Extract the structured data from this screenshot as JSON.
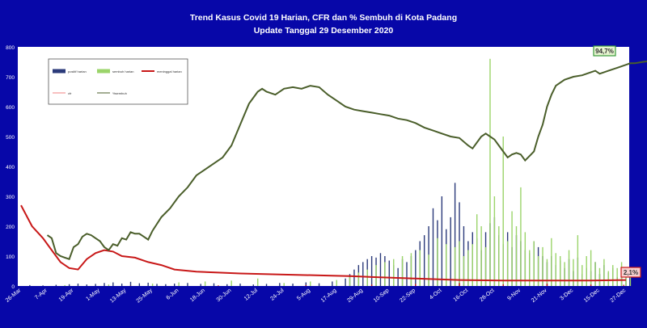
{
  "title": "Trend Kasus Covid 19 Harian, CFR dan % Sembuh di Kota Padang",
  "subtitle": "Update Tanggal 29 Desember  2020",
  "colors": {
    "background": "#0707a8",
    "plot_area": "#ffffff",
    "positif": "#2b3a7a",
    "sembuh": "#9bd46a",
    "meninggal": "#c81818",
    "cfr": "#f08080",
    "sembuh_pct": "#4a5e2a"
  },
  "chart_data": {
    "type": "bar",
    "title": "Trend Kasus Covid 19 Harian, CFR dan % Sembuh di Kota Padang",
    "subtitle": "Update Tanggal 29 Desember  2020",
    "xlabel": "",
    "ylabel": "",
    "ylim": [
      0,
      800
    ],
    "yticks": [
      0,
      100,
      200,
      300,
      400,
      500,
      600,
      700,
      800
    ],
    "grid": false,
    "legend_position": "top-left",
    "x_tick_labels": [
      "26-Mar",
      "7-Apr",
      "19-Apr",
      "1-May",
      "13-May",
      "25-May",
      "6-Jun",
      "18-Jun",
      "30-Jun",
      "12-Jul",
      "24-Jul",
      "5-Aug",
      "17-Aug",
      "29-Aug",
      "10-Sep",
      "22-Sep",
      "4-Oct",
      "16-Oct",
      "28-Oct",
      "9-Nov",
      "21-Nov",
      "3-Dec",
      "15-Dec",
      "27-Dec"
    ],
    "legend": [
      "positif harian",
      "sembuh harian",
      "meninggal harian",
      "cfr",
      "%sembuh"
    ],
    "series": [
      {
        "name": "positif harian",
        "kind": "bar",
        "points": [
          [
            4,
            3
          ],
          [
            10,
            2
          ],
          [
            16,
            4
          ],
          [
            22,
            6
          ],
          [
            26,
            8
          ],
          [
            30,
            5
          ],
          [
            34,
            7
          ],
          [
            38,
            10
          ],
          [
            42,
            12
          ],
          [
            46,
            8
          ],
          [
            50,
            14
          ],
          [
            54,
            9
          ],
          [
            58,
            11
          ],
          [
            62,
            7
          ],
          [
            66,
            6
          ],
          [
            70,
            8
          ],
          [
            76,
            10
          ],
          [
            82,
            7
          ],
          [
            88,
            9
          ],
          [
            94,
            6
          ],
          [
            100,
            8
          ],
          [
            106,
            5
          ],
          [
            112,
            7
          ],
          [
            118,
            10
          ],
          [
            124,
            8
          ],
          [
            130,
            12
          ],
          [
            136,
            9
          ],
          [
            142,
            15
          ],
          [
            148,
            25
          ],
          [
            150,
            40
          ],
          [
            152,
            55
          ],
          [
            154,
            70
          ],
          [
            156,
            80
          ],
          [
            158,
            90
          ],
          [
            160,
            100
          ],
          [
            162,
            95
          ],
          [
            164,
            110
          ],
          [
            166,
            100
          ],
          [
            168,
            85
          ],
          [
            170,
            70
          ],
          [
            172,
            60
          ],
          [
            174,
            90
          ],
          [
            176,
            80
          ],
          [
            178,
            100
          ],
          [
            180,
            120
          ],
          [
            182,
            150
          ],
          [
            184,
            170
          ],
          [
            186,
            200
          ],
          [
            188,
            260
          ],
          [
            190,
            220
          ],
          [
            192,
            300
          ],
          [
            194,
            190
          ],
          [
            196,
            230
          ],
          [
            198,
            345
          ],
          [
            200,
            280
          ],
          [
            202,
            200
          ],
          [
            204,
            150
          ],
          [
            206,
            180
          ],
          [
            208,
            160
          ],
          [
            210,
            120
          ],
          [
            212,
            180
          ],
          [
            214,
            210
          ],
          [
            216,
            230
          ],
          [
            218,
            170
          ],
          [
            220,
            140
          ],
          [
            222,
            180
          ],
          [
            224,
            130
          ],
          [
            226,
            170
          ],
          [
            228,
            150
          ],
          [
            230,
            120
          ],
          [
            232,
            110
          ],
          [
            234,
            150
          ],
          [
            236,
            130
          ],
          [
            238,
            100
          ],
          [
            240,
            80
          ],
          [
            242,
            100
          ],
          [
            244,
            70
          ],
          [
            246,
            85
          ],
          [
            248,
            60
          ],
          [
            250,
            90
          ],
          [
            252,
            50
          ],
          [
            254,
            95
          ],
          [
            256,
            40
          ],
          [
            258,
            60
          ],
          [
            260,
            50
          ],
          [
            262,
            80
          ],
          [
            264,
            40
          ],
          [
            266,
            70
          ],
          [
            268,
            45
          ],
          [
            270,
            60
          ],
          [
            272,
            30
          ],
          [
            274,
            40
          ],
          [
            276,
            50
          ],
          [
            278,
            35
          ]
        ]
      },
      {
        "name": "sembuh harian",
        "kind": "bar",
        "points": [
          [
            20,
            3
          ],
          [
            40,
            5
          ],
          [
            60,
            8
          ],
          [
            72,
            12
          ],
          [
            84,
            15
          ],
          [
            96,
            18
          ],
          [
            108,
            25
          ],
          [
            120,
            10
          ],
          [
            132,
            15
          ],
          [
            144,
            20
          ],
          [
            150,
            30
          ],
          [
            154,
            45
          ],
          [
            158,
            55
          ],
          [
            162,
            70
          ],
          [
            166,
            80
          ],
          [
            170,
            90
          ],
          [
            174,
            100
          ],
          [
            178,
            110
          ],
          [
            182,
            120
          ],
          [
            186,
            105
          ],
          [
            190,
            160
          ],
          [
            194,
            140
          ],
          [
            198,
            130
          ],
          [
            200,
            150
          ],
          [
            202,
            100
          ],
          [
            204,
            120
          ],
          [
            206,
            140
          ],
          [
            208,
            240
          ],
          [
            210,
            200
          ],
          [
            212,
            130
          ],
          [
            214,
            760
          ],
          [
            216,
            300
          ],
          [
            218,
            200
          ],
          [
            220,
            500
          ],
          [
            222,
            150
          ],
          [
            224,
            250
          ],
          [
            226,
            200
          ],
          [
            228,
            330
          ],
          [
            230,
            180
          ],
          [
            232,
            120
          ],
          [
            234,
            150
          ],
          [
            236,
            100
          ],
          [
            238,
            130
          ],
          [
            240,
            90
          ],
          [
            242,
            160
          ],
          [
            244,
            110
          ],
          [
            246,
            100
          ],
          [
            248,
            80
          ],
          [
            250,
            120
          ],
          [
            252,
            90
          ],
          [
            254,
            170
          ],
          [
            256,
            70
          ],
          [
            258,
            100
          ],
          [
            260,
            120
          ],
          [
            262,
            80
          ],
          [
            264,
            60
          ],
          [
            266,
            90
          ],
          [
            268,
            50
          ],
          [
            270,
            70
          ],
          [
            272,
            60
          ],
          [
            274,
            80
          ],
          [
            276,
            50
          ],
          [
            278,
            40
          ]
        ]
      },
      {
        "name": "meninggal harian",
        "kind": "bar",
        "points": [
          [
            50,
            1
          ],
          [
            90,
            2
          ],
          [
            130,
            3
          ],
          [
            160,
            5
          ],
          [
            180,
            7
          ],
          [
            200,
            10
          ],
          [
            220,
            6
          ],
          [
            240,
            8
          ],
          [
            260,
            5
          ],
          [
            275,
            4
          ]
        ]
      },
      {
        "name": "cfr",
        "kind": "line",
        "points": [
          [
            0,
            270
          ],
          [
            5,
            200
          ],
          [
            10,
            160
          ],
          [
            14,
            120
          ],
          [
            18,
            80
          ],
          [
            22,
            60
          ],
          [
            26,
            55
          ],
          [
            30,
            90
          ],
          [
            34,
            110
          ],
          [
            38,
            120
          ],
          [
            42,
            115
          ],
          [
            46,
            100
          ],
          [
            52,
            95
          ],
          [
            58,
            80
          ],
          [
            64,
            70
          ],
          [
            70,
            55
          ],
          [
            80,
            48
          ],
          [
            90,
            45
          ],
          [
            100,
            42
          ],
          [
            120,
            38
          ],
          [
            140,
            35
          ],
          [
            150,
            33
          ],
          [
            160,
            30
          ],
          [
            180,
            25
          ],
          [
            200,
            20
          ],
          [
            220,
            18
          ],
          [
            240,
            18
          ],
          [
            260,
            18
          ],
          [
            276,
            20
          ]
        ]
      },
      {
        "name": "%sembuh",
        "kind": "line",
        "points": [
          [
            12,
            170
          ],
          [
            14,
            160
          ],
          [
            16,
            110
          ],
          [
            18,
            100
          ],
          [
            20,
            95
          ],
          [
            22,
            90
          ],
          [
            24,
            130
          ],
          [
            26,
            140
          ],
          [
            28,
            165
          ],
          [
            30,
            175
          ],
          [
            32,
            170
          ],
          [
            34,
            160
          ],
          [
            36,
            150
          ],
          [
            38,
            130
          ],
          [
            40,
            120
          ],
          [
            42,
            140
          ],
          [
            44,
            135
          ],
          [
            46,
            160
          ],
          [
            48,
            155
          ],
          [
            50,
            180
          ],
          [
            52,
            175
          ],
          [
            54,
            175
          ],
          [
            56,
            165
          ],
          [
            58,
            155
          ],
          [
            60,
            185
          ],
          [
            64,
            230
          ],
          [
            68,
            260
          ],
          [
            72,
            300
          ],
          [
            76,
            330
          ],
          [
            80,
            370
          ],
          [
            84,
            390
          ],
          [
            88,
            410
          ],
          [
            92,
            430
          ],
          [
            96,
            470
          ],
          [
            100,
            540
          ],
          [
            104,
            610
          ],
          [
            108,
            650
          ],
          [
            110,
            660
          ],
          [
            112,
            650
          ],
          [
            116,
            640
          ],
          [
            120,
            660
          ],
          [
            124,
            665
          ],
          [
            128,
            660
          ],
          [
            132,
            670
          ],
          [
            136,
            665
          ],
          [
            140,
            640
          ],
          [
            144,
            620
          ],
          [
            148,
            600
          ],
          [
            152,
            590
          ],
          [
            156,
            585
          ],
          [
            160,
            580
          ],
          [
            164,
            575
          ],
          [
            168,
            570
          ],
          [
            172,
            560
          ],
          [
            176,
            555
          ],
          [
            180,
            545
          ],
          [
            184,
            530
          ],
          [
            188,
            520
          ],
          [
            192,
            510
          ],
          [
            196,
            500
          ],
          [
            200,
            495
          ],
          [
            204,
            470
          ],
          [
            206,
            460
          ],
          [
            208,
            480
          ],
          [
            210,
            500
          ],
          [
            212,
            510
          ],
          [
            214,
            500
          ],
          [
            216,
            490
          ],
          [
            218,
            470
          ],
          [
            220,
            450
          ],
          [
            222,
            430
          ],
          [
            224,
            440
          ],
          [
            226,
            445
          ],
          [
            228,
            440
          ],
          [
            230,
            420
          ],
          [
            232,
            435
          ],
          [
            234,
            450
          ],
          [
            236,
            500
          ],
          [
            238,
            540
          ],
          [
            240,
            600
          ],
          [
            242,
            640
          ],
          [
            244,
            670
          ],
          [
            248,
            690
          ],
          [
            252,
            700
          ],
          [
            256,
            705
          ],
          [
            260,
            715
          ],
          [
            262,
            720
          ],
          [
            264,
            710
          ],
          [
            268,
            720
          ],
          [
            272,
            730
          ],
          [
            276,
            740
          ],
          [
            278,
            745
          ],
          [
            280,
            745
          ],
          [
            284,
            750
          ],
          [
            290,
            755
          ]
        ]
      }
    ],
    "annotations": [
      {
        "text": "94,7%",
        "series": "%sembuh"
      },
      {
        "text": "2,1%",
        "series": "cfr"
      }
    ]
  }
}
